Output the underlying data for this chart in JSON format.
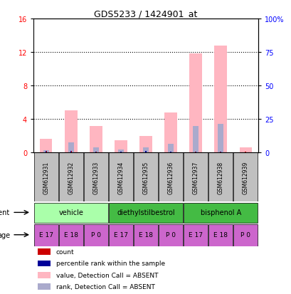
{
  "title": "GDS5233 / 1424901_at",
  "samples": [
    "GSM612931",
    "GSM612932",
    "GSM612933",
    "GSM612934",
    "GSM612935",
    "GSM612936",
    "GSM612937",
    "GSM612938",
    "GSM612939"
  ],
  "pink_bars": [
    1.6,
    5.0,
    3.2,
    1.5,
    2.0,
    4.8,
    11.8,
    12.8,
    0.6
  ],
  "blue_bars": [
    0.3,
    1.2,
    0.6,
    0.4,
    0.6,
    1.0,
    3.2,
    3.4,
    0.0
  ],
  "red_bars": [
    0.15,
    0.18,
    0.12,
    0.1,
    0.15,
    0.12,
    0.1,
    0.1,
    0.08
  ],
  "dark_blue_bars": [
    0.15,
    0.18,
    0.12,
    0.1,
    0.15,
    0.12,
    0.1,
    0.1,
    0.0
  ],
  "ylim_left": [
    0,
    16
  ],
  "ylim_right": [
    0,
    100
  ],
  "yticks_left": [
    0,
    4,
    8,
    12,
    16
  ],
  "yticks_right": [
    0,
    25,
    50,
    75,
    100
  ],
  "ytick_labels_left": [
    "0",
    "4",
    "8",
    "12",
    "16"
  ],
  "ytick_labels_right": [
    "0",
    "25",
    "50",
    "75",
    "100%"
  ],
  "age_labels": [
    "E 17",
    "E 18",
    "P 0",
    "E 17",
    "E 18",
    "P 0",
    "E 17",
    "E 18",
    "P 0"
  ],
  "age_color": "#CC66CC",
  "sample_bg_color": "#C0C0C0",
  "pink_color": "#FFB6C1",
  "light_blue_color": "#AAAACC",
  "red_color": "#CC0000",
  "dark_blue_color": "#000099",
  "bar_width": 0.5,
  "agent_vehicle_color": "#AAFFAA",
  "agent_des_color": "#44BB44",
  "agent_bpa_color": "#44BB44",
  "grid_yticks": [
    4,
    8,
    12
  ],
  "legend_items": [
    {
      "color": "#CC0000",
      "label": "count"
    },
    {
      "color": "#000099",
      "label": "percentile rank within the sample"
    },
    {
      "color": "#FFB6C1",
      "label": "value, Detection Call = ABSENT"
    },
    {
      "color": "#AAAACC",
      "label": "rank, Detection Call = ABSENT"
    }
  ]
}
